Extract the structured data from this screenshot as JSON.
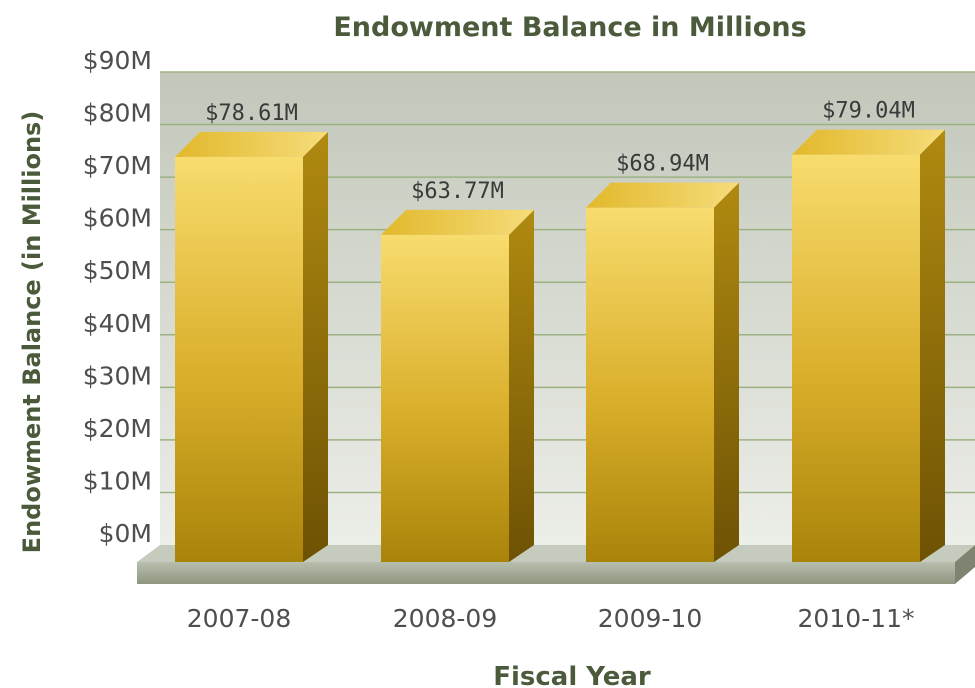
{
  "chart_data": {
    "type": "bar",
    "title": "Endowment Balance in Millions",
    "xlabel": "Fiscal Year",
    "ylabel": "Endowment Balance (in Millions)",
    "categories": [
      "2007-08",
      "2008-09",
      "2009-10",
      "2010-11*"
    ],
    "values": [
      78.61,
      63.77,
      68.94,
      79.04
    ],
    "data_labels": [
      "$78.61M",
      "$63.77M",
      "$68.94M",
      "$79.04M"
    ],
    "y_ticks": [
      "$0M",
      "$10M",
      "$20M",
      "$30M",
      "$40M",
      "$50M",
      "$60M",
      "$70M",
      "$80M",
      "$90M"
    ],
    "ylim": [
      0,
      90
    ],
    "grid": true,
    "legend": "none",
    "colors": {
      "bar_front_top": "#f7d96a",
      "bar_front_bottom": "#b08a0a",
      "bar_side": "#8c6a05",
      "bar_top": "#e8c23a",
      "plot_bg_top": "#c7cbbf",
      "plot_bg_bottom": "#e8ebe4",
      "grid": "#9ab07c",
      "floor": "#a8b09c",
      "text_heading": "#4a5a3a"
    }
  }
}
